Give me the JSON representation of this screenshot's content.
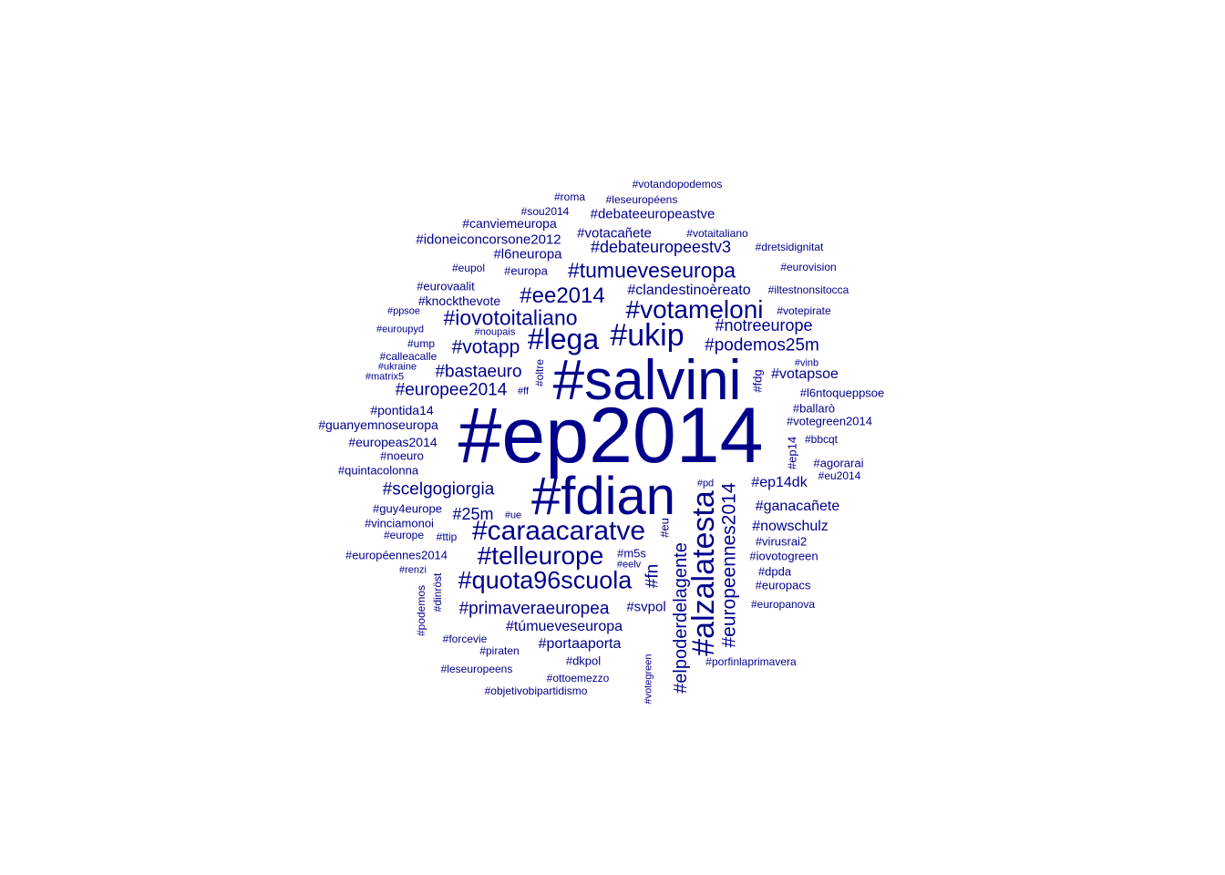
{
  "colors": {
    "background": "#ffffff",
    "text": "#00008b"
  },
  "words": [
    "#ep2014",
    "#salvini",
    "#fdian",
    "#ukip",
    "#lega",
    "#votameloni",
    "#alzalatesta",
    "#caraacaratve",
    "#telleurope",
    "#quota96scuola",
    "#ee2014",
    "#iovotoitaliano",
    "#tumueveseuropa",
    "#europeennes2014",
    "#votapp",
    "#podemos25m",
    "#scelgogiorgia",
    "#europee2014",
    "#bastaeuro",
    "#elpoderdelagente",
    "#primaveraeuropea",
    "#notreeurope",
    "#debateuropeestv3",
    "#clandestinoèreato",
    "#nowschulz",
    "#votapsoe",
    "#25m",
    "#túmueveseuropa",
    "#votacañete",
    "#debateeuropeastve",
    "#ganacañete",
    "#ep14dk",
    "#portaaporta",
    "#fn",
    "#idoneiconcorsone2012",
    "#svpol",
    "#l6neuropa",
    "#canviemeuropa",
    "#knockthevote",
    "#guanyemnoseuropa",
    "#europeas2014",
    "#pontida14",
    "#quintacolonna",
    "#votegreen2014",
    "#iovotogreen",
    "#l6ntoqueppsoe",
    "#eurovaalit",
    "#europa",
    "#europeennes2014b",
    "#votaitaliano",
    "#m5s",
    "#guy4europe",
    "#vinciamonoi",
    "#dkpol",
    "#ep14",
    "#europacs",
    "#fdg",
    "#ballarò",
    "#eupol",
    "#noeuro",
    "#bbcqt",
    "#virusrai2",
    "#porfinlaprimavera",
    "#iltestnonsitocca",
    "#objetivobipartidismo",
    "#ottoemezzo",
    "#votandopodemos",
    "#leseuropéens",
    "#leseuropeens",
    "#dretsidignitat",
    "#eurovision",
    "#votepirate",
    "#europanova",
    "#agorarai",
    "#dpda",
    "#eu",
    "#roma",
    "#sou2014",
    "#ump",
    "#eu2014",
    "#pirаten",
    "#forcevie",
    "#dinröst",
    "#podemos",
    "#votegreen",
    "#europe",
    "#ttip",
    "#renzi",
    "#eelv",
    "#ppsoe",
    "#euroupyd",
    "#noupais",
    "#calleacalle",
    "#ukraine",
    "#matrix5",
    "#oltre",
    "#ff",
    "#vinb",
    "#pd",
    "#ue"
  ],
  "cloud": [
    {
      "text": "#ep2014",
      "weight": 100
    },
    {
      "text": "#salvini",
      "weight": 70
    },
    {
      "text": "#fdian",
      "weight": 66
    },
    {
      "text": "#alzalatesta",
      "weight": 40
    },
    {
      "text": "#ukip",
      "weight": 40
    },
    {
      "text": "#lega",
      "weight": 38
    },
    {
      "text": "#caraacaratve",
      "weight": 36
    },
    {
      "text": "#votameloni",
      "weight": 34
    },
    {
      "text": "#telleurope",
      "weight": 34
    },
    {
      "text": "#quota96scuola",
      "weight": 32
    },
    {
      "text": "#ee2014",
      "weight": 28
    },
    {
      "text": "#iovotoitaliano",
      "weight": 28
    },
    {
      "text": "#tumueveseuropa",
      "weight": 27
    },
    {
      "text": "#europeennes2014",
      "weight": 25
    },
    {
      "text": "#votapp",
      "weight": 25
    },
    {
      "text": "#elpoderdelagente",
      "weight": 23
    },
    {
      "text": "#podemos25m",
      "weight": 23
    },
    {
      "text": "#scelgogiorgia",
      "weight": 23
    },
    {
      "text": "#fn",
      "weight": 23
    },
    {
      "text": "#europee2014",
      "weight": 22
    },
    {
      "text": "#bastaeuro",
      "weight": 22
    },
    {
      "text": "#primaveraeuropea",
      "weight": 22
    },
    {
      "text": "#notreeurope",
      "weight": 21
    },
    {
      "text": "#debateuropeestv3",
      "weight": 21
    },
    {
      "text": "#25m",
      "weight": 21
    },
    {
      "text": "#clandestinoèreato",
      "weight": 19
    },
    {
      "text": "#nowschulz",
      "weight": 19
    },
    {
      "text": "#votapsoe",
      "weight": 19
    },
    {
      "text": "#túmueveseuropa",
      "weight": 19
    },
    {
      "text": "#ep14dk",
      "weight": 19
    },
    {
      "text": "#ganacañete",
      "weight": 19
    },
    {
      "text": "#portaaporta",
      "weight": 19
    },
    {
      "text": "#votacañete",
      "weight": 18
    },
    {
      "text": "#debateeuropeastve",
      "weight": 18
    },
    {
      "text": "#svpol",
      "weight": 17
    },
    {
      "text": "#idoneiconcorsone2012",
      "weight": 17
    },
    {
      "text": "#l6neuropa",
      "weight": 17
    },
    {
      "text": "#canviemeuropa",
      "weight": 16
    },
    {
      "text": "#knockthevote",
      "weight": 16
    },
    {
      "text": "#guanyemnoseuropa",
      "weight": 16
    },
    {
      "text": "#europeas2014",
      "weight": 16
    },
    {
      "text": "#pontida14",
      "weight": 16
    },
    {
      "text": "#quintacolonna",
      "weight": 15
    },
    {
      "text": "#votegreen2014",
      "weight": 15
    },
    {
      "text": "#iovotogreen",
      "weight": 15
    },
    {
      "text": "#l6ntoqueppsoe",
      "weight": 15
    },
    {
      "text": "#eurovaalit",
      "weight": 15
    },
    {
      "text": "#europa",
      "weight": 15
    },
    {
      "text": "#votaitaliano",
      "weight": 14
    },
    {
      "text": "#m5s",
      "weight": 15
    },
    {
      "text": "#guy4europe",
      "weight": 15
    },
    {
      "text": "#vinciamonoi",
      "weight": 15
    },
    {
      "text": "#dkpol",
      "weight": 15
    },
    {
      "text": "#ep14",
      "weight": 15
    },
    {
      "text": "#europacs",
      "weight": 15
    },
    {
      "text": "#fdg",
      "weight": 15
    },
    {
      "text": "#ballarò",
      "weight": 14
    },
    {
      "text": "#eupol",
      "weight": 14
    },
    {
      "text": "#noeuro",
      "weight": 14
    },
    {
      "text": "#bbcqt",
      "weight": 14
    },
    {
      "text": "#virusrai2",
      "weight": 14
    },
    {
      "text": "#porfinlaprimavera",
      "weight": 13
    },
    {
      "text": "#iltestnonsitocca",
      "weight": 13
    },
    {
      "text": "#objetivobipartidismo",
      "weight": 13
    },
    {
      "text": "#ottoemezzo",
      "weight": 13
    },
    {
      "text": "#votandopodemos",
      "weight": 13
    },
    {
      "text": "#leseuropéens",
      "weight": 13
    },
    {
      "text": "#leseuropeens",
      "weight": 13
    },
    {
      "text": "#dretsidignitat",
      "weight": 13
    },
    {
      "text": "#eurovision",
      "weight": 13
    },
    {
      "text": "#votepirate",
      "weight": 13
    },
    {
      "text": "#europanova",
      "weight": 13
    },
    {
      "text": "#agorarai",
      "weight": 14
    },
    {
      "text": "#dpda",
      "weight": 14
    },
    {
      "text": "#eu",
      "weight": 13
    },
    {
      "text": "#roma",
      "weight": 13
    },
    {
      "text": "#sou2014",
      "weight": 13
    },
    {
      "text": "#ump",
      "weight": 13
    },
    {
      "text": "#eu2014",
      "weight": 13
    },
    {
      "text": "#piraten",
      "weight": 13
    },
    {
      "text": "#forcevie",
      "weight": 13
    },
    {
      "text": "#dinröst",
      "weight": 13
    },
    {
      "text": "#podemos",
      "weight": 13
    },
    {
      "text": "#votegreen",
      "weight": 12
    },
    {
      "text": "#europe",
      "weight": 13
    },
    {
      "text": "#ttip",
      "weight": 13
    },
    {
      "text": "#renzi",
      "weight": 12
    },
    {
      "text": "#eelv",
      "weight": 12
    },
    {
      "text": "#ppsoe",
      "weight": 12
    },
    {
      "text": "#euroupyd",
      "weight": 12
    },
    {
      "text": "#noupais",
      "weight": 12
    },
    {
      "text": "#calleacalle",
      "weight": 13
    },
    {
      "text": "#ukraine",
      "weight": 12
    },
    {
      "text": "#matrix5",
      "weight": 12
    },
    {
      "text": "#oltre",
      "weight": 13
    },
    {
      "text": "#ff",
      "weight": 12
    },
    {
      "text": "#vinb",
      "weight": 12
    },
    {
      "text": "#pd",
      "weight": 12
    },
    {
      "text": "#ue",
      "weight": 12
    },
    {
      "text": "#européennes2014",
      "weight": 14
    }
  ]
}
